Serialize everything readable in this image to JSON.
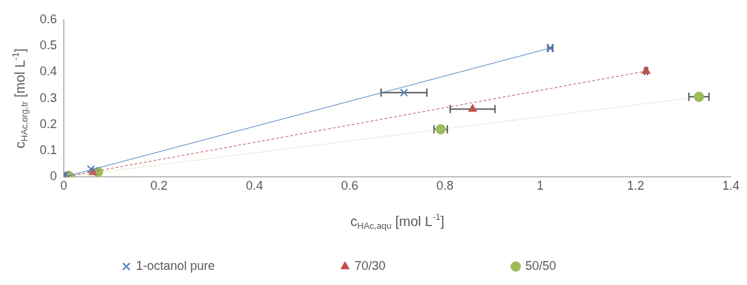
{
  "chart_data": {
    "type": "scatter",
    "xlabel": "c$_{HAc,aqu}$ [mol L$^{-1}$]",
    "ylabel": "c$_{HAc,org,tr}$ [mol L$^{-1}$]",
    "xlim": [
      0,
      1.4
    ],
    "xticks": [
      0,
      0.2,
      0.4,
      0.6,
      0.8,
      1,
      1.2,
      1.4
    ],
    "ylim": [
      0,
      0.6
    ],
    "yticks": [
      0,
      0.1,
      0.2,
      0.3,
      0.4,
      0.5,
      0.6
    ],
    "grid": false,
    "legend": "bottom",
    "series": [
      {
        "type": "line",
        "color": "#4f81bd",
        "line_style": "solid",
        "marker": "none",
        "x": [
          0,
          1.021
        ],
        "values": [
          0,
          0.492
        ]
      },
      {
        "type": "line",
        "color": "#c0504d",
        "line_style": "dashed",
        "marker": "none",
        "x": [
          0,
          1.222
        ],
        "values": [
          0,
          0.404
        ]
      },
      {
        "type": "line",
        "color": "#c3d69b",
        "line_style": "dotted",
        "marker": "none",
        "x": [
          0,
          1.333
        ],
        "values": [
          0,
          0.306
        ]
      },
      {
        "type": "scatter",
        "name": "1-octanol pure",
        "color": "#4f81bd",
        "marker": "cross",
        "x": [
          0.003,
          0.057,
          0.714,
          1.021
        ],
        "values": [
          0.01,
          0.03,
          0.322,
          0.492
        ],
        "xerrors": [
          null,
          null,
          0.048,
          0.005
        ]
      },
      {
        "type": "scatter",
        "name": "70/30",
        "color": "#c0504d",
        "marker": "triangle",
        "x": [
          0.003,
          0.061,
          0.858,
          1.222
        ],
        "values": [
          0.002,
          0.018,
          0.259,
          0.404
        ],
        "xerrors": [
          null,
          null,
          0.047,
          0.003
        ]
      },
      {
        "type": "scatter",
        "name": "50/50",
        "color": "#9bbb59",
        "marker": "circle",
        "x": [
          0.011,
          0.072,
          0.791,
          1.333
        ],
        "values": [
          0.004,
          0.019,
          0.182,
          0.306
        ],
        "xerrors": [
          null,
          null,
          0.014,
          0.021
        ]
      }
    ]
  }
}
